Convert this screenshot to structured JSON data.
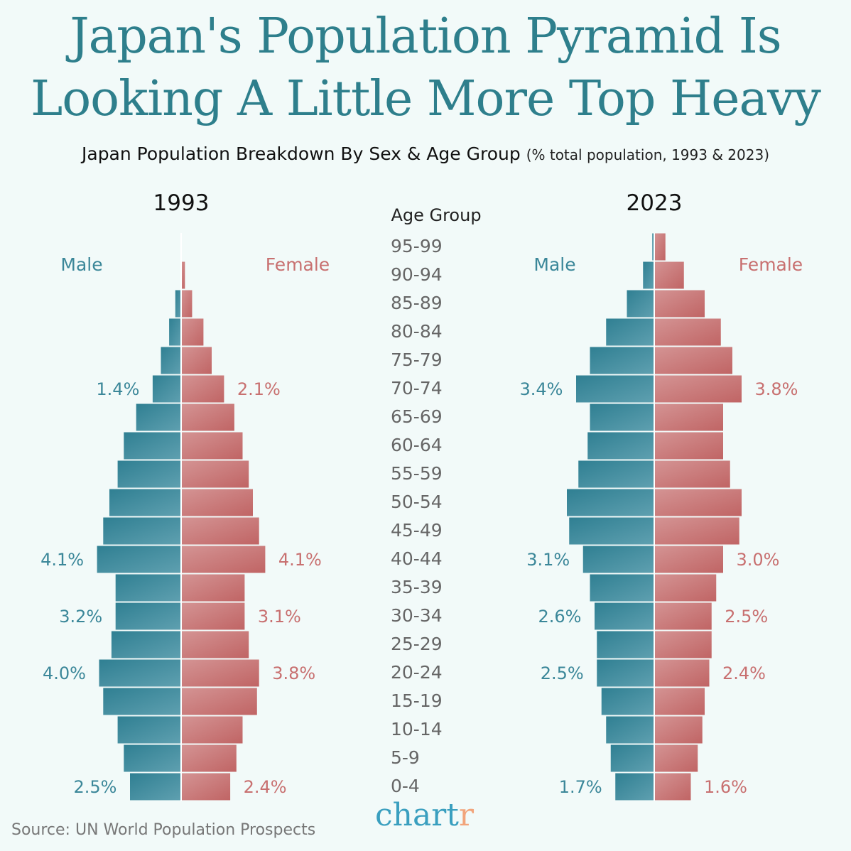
{
  "title_line1": "Japan's Population Pyramid Is",
  "title_line2": "Looking A Little More Top Heavy",
  "subtitle": "Japan Population Breakdown By Sex & Age Group",
  "subtitle_note": "(% total population, 1993 & 2023)",
  "source": "Source: UN World Population Prospects",
  "logo": {
    "main": "chart",
    "accent": "r"
  },
  "colors": {
    "male": "#3b8799",
    "female": "#c87070",
    "title": "#2e7f8c"
  },
  "chart_data": {
    "type": "bar",
    "orientation": "horizontal-pyramid",
    "axis_label": "Age Group",
    "categories": [
      "95-99",
      "90-94",
      "85-89",
      "80-84",
      "75-79",
      "70-74",
      "65-69",
      "60-64",
      "55-59",
      "50-54",
      "45-49",
      "40-44",
      "35-39",
      "30-34",
      "25-29",
      "20-24",
      "15-19",
      "10-14",
      "5-9",
      "0-4"
    ],
    "legend": {
      "male": "Male",
      "female": "Female"
    },
    "unit": "%",
    "panels": [
      {
        "year": "1993",
        "male": [
          0.0,
          0.05,
          0.3,
          0.6,
          1.0,
          1.4,
          2.2,
          2.8,
          3.1,
          3.5,
          3.8,
          4.1,
          3.2,
          3.2,
          3.4,
          4.0,
          3.8,
          3.1,
          2.8,
          2.5
        ],
        "female": [
          0.05,
          0.2,
          0.55,
          1.1,
          1.5,
          2.1,
          2.6,
          3.0,
          3.3,
          3.5,
          3.8,
          4.1,
          3.1,
          3.1,
          3.3,
          3.8,
          3.7,
          3.0,
          2.7,
          2.4
        ],
        "labels": [
          {
            "age": "70-74",
            "male": "1.4%",
            "female": "2.1%"
          },
          {
            "age": "40-44",
            "male": "4.1%",
            "female": "4.1%"
          },
          {
            "age": "30-34",
            "male": "3.2%",
            "female": "3.1%"
          },
          {
            "age": "20-24",
            "male": "4.0%",
            "female": "3.8%"
          },
          {
            "age": "0-4",
            "male": "2.5%",
            "female": "2.4%"
          }
        ]
      },
      {
        "year": "2023",
        "male": [
          0.1,
          0.5,
          1.2,
          2.1,
          2.8,
          3.4,
          2.8,
          2.9,
          3.3,
          3.8,
          3.7,
          3.1,
          2.8,
          2.6,
          2.5,
          2.5,
          2.3,
          2.1,
          1.9,
          1.7
        ],
        "female": [
          0.5,
          1.3,
          2.2,
          2.9,
          3.4,
          3.8,
          3.0,
          3.0,
          3.3,
          3.8,
          3.7,
          3.0,
          2.7,
          2.5,
          2.5,
          2.4,
          2.2,
          2.1,
          1.9,
          1.6
        ],
        "labels": [
          {
            "age": "70-74",
            "male": "3.4%",
            "female": "3.8%"
          },
          {
            "age": "40-44",
            "male": "3.1%",
            "female": "3.0%"
          },
          {
            "age": "30-34",
            "male": "2.6%",
            "female": "2.5%"
          },
          {
            "age": "20-24",
            "male": "2.5%",
            "female": "2.4%"
          },
          {
            "age": "0-4",
            "male": "1.7%",
            "female": "1.6%"
          }
        ]
      }
    ]
  }
}
